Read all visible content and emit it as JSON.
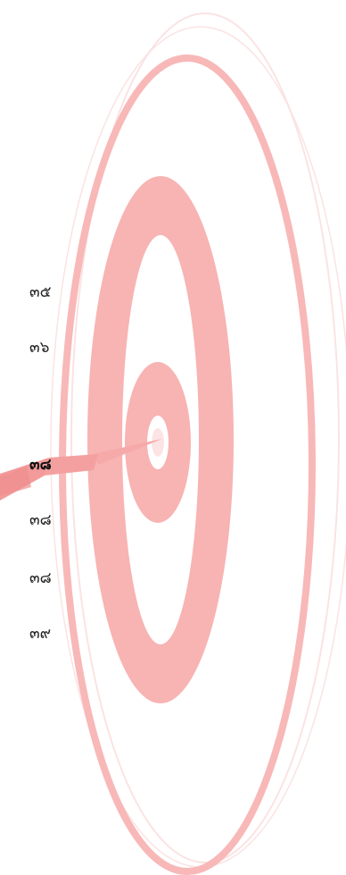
{
  "theme": {
    "accent_color": "#f8a9a9",
    "text_color": "#222222",
    "selected_text_color": "#111111",
    "background_color": "#ffffff"
  },
  "background": {
    "image": "dartboard-watermark"
  },
  "picker": {
    "items": [
      {
        "label": "๓๕",
        "selected": false
      },
      {
        "label": "๓๖",
        "selected": false
      },
      {
        "label": "๓๘",
        "selected": true
      },
      {
        "label": "๓๘",
        "selected": false
      },
      {
        "label": "๓๘",
        "selected": false
      },
      {
        "label": "๓๙",
        "selected": false
      }
    ]
  }
}
